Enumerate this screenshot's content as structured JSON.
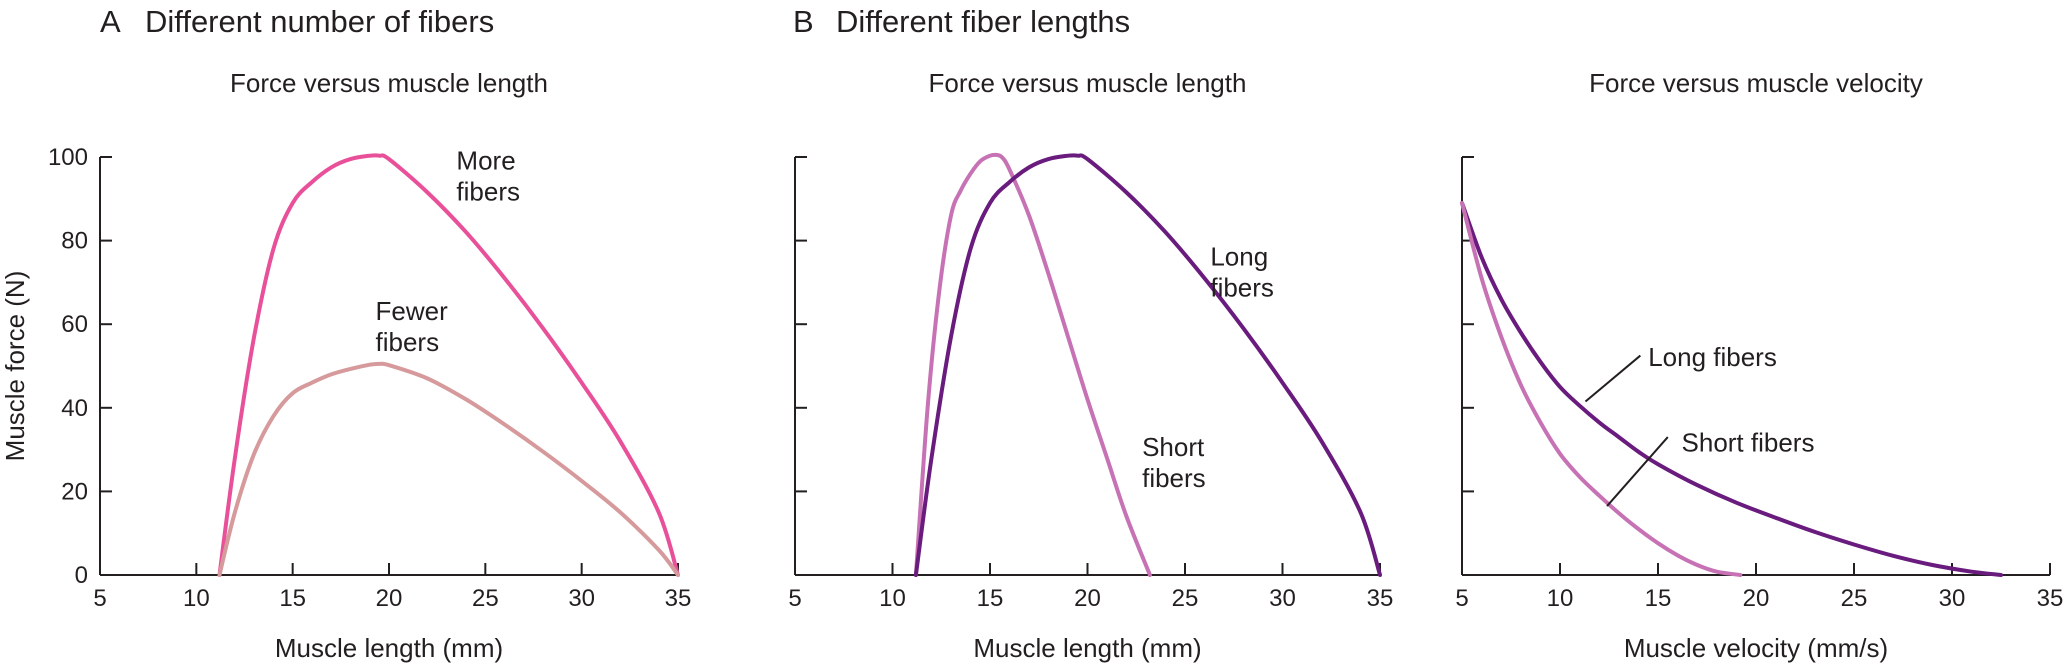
{
  "panels": [
    {
      "letter": "A",
      "heading": "Different number of fibers"
    },
    {
      "letter": "B",
      "heading": "Different fiber lengths"
    }
  ],
  "chart_data": [
    {
      "type": "line",
      "title": "Force versus muscle length",
      "xlabel": "Muscle length (mm)",
      "ylabel": "Muscle force (N)",
      "xlim": [
        5,
        35
      ],
      "ylim": [
        0,
        100
      ],
      "xticks": [
        5,
        10,
        15,
        20,
        25,
        30,
        35
      ],
      "yticks": [
        0,
        20,
        40,
        60,
        80,
        100
      ],
      "show_xtick_labels": true,
      "show_ytick_labels": true,
      "grid": false,
      "legend": "none",
      "series": [
        {
          "name": "More fibers",
          "color": "#e8519a",
          "label_lines": [
            "More",
            "fibers"
          ],
          "x": [
            11.2,
            12,
            13,
            14,
            15,
            16,
            17,
            18,
            19,
            19.5,
            20,
            22,
            24,
            26,
            28,
            30,
            32,
            34,
            35
          ],
          "y": [
            0,
            28,
            57,
            78,
            89,
            94,
            97.5,
            99.5,
            100.3,
            100.3,
            99.5,
            91.5,
            82,
            71,
            59,
            46,
            32,
            15,
            0
          ]
        },
        {
          "name": "Fewer fibers",
          "color": "#d69a9c",
          "label_lines": [
            "Fewer",
            "fibers"
          ],
          "x": [
            11.2,
            12,
            13,
            14,
            15,
            16,
            17,
            18,
            19,
            19.5,
            20,
            22,
            24,
            26,
            28,
            30,
            32,
            34,
            35
          ],
          "y": [
            0,
            15,
            29,
            38,
            43.5,
            46,
            48,
            49.3,
            50.3,
            50.5,
            50.2,
            47,
            42,
            36,
            29.5,
            22.5,
            15,
            6,
            0
          ]
        }
      ],
      "annotations": [
        {
          "series": 0,
          "lines": [
            "More",
            "fibers"
          ],
          "x": 23.5,
          "y": 97
        },
        {
          "series": 1,
          "lines": [
            "Fewer",
            "fibers"
          ],
          "x": 19.3,
          "y": 61
        }
      ]
    },
    {
      "type": "line",
      "title": "Force versus muscle length",
      "xlabel": "Muscle length (mm)",
      "ylabel": "",
      "xlim": [
        5,
        35
      ],
      "ylim": [
        0,
        100
      ],
      "xticks": [
        5,
        10,
        15,
        20,
        25,
        30,
        35
      ],
      "yticks": [
        0,
        20,
        40,
        60,
        80,
        100
      ],
      "show_xtick_labels": true,
      "show_ytick_labels": false,
      "grid": false,
      "legend": "none",
      "series": [
        {
          "name": "Short fibers",
          "color": "#c772b4",
          "x": [
            11.2,
            11.8,
            12.4,
            13,
            13.5,
            14,
            14.5,
            15,
            15.3,
            15.6,
            16,
            17,
            18,
            19,
            20,
            21,
            22,
            23.2
          ],
          "y": [
            0,
            40,
            68,
            86,
            92,
            96,
            99,
            100.3,
            100.5,
            100,
            97,
            86,
            72,
            57,
            42,
            28,
            14,
            0
          ]
        },
        {
          "name": "Long fibers",
          "color": "#6a1b7e",
          "x": [
            11.2,
            12,
            13,
            14,
            15,
            16,
            17,
            18,
            19,
            19.5,
            20,
            22,
            24,
            26,
            28,
            30,
            32,
            34,
            35
          ],
          "y": [
            0,
            28,
            57,
            78,
            89,
            94,
            97.5,
            99.5,
            100.3,
            100.3,
            99.5,
            91.5,
            82,
            71,
            59,
            46,
            32,
            15,
            0
          ]
        }
      ],
      "annotations": [
        {
          "series": 1,
          "lines": [
            "Long",
            "fibers"
          ],
          "x": 26.3,
          "y": 74
        },
        {
          "series": 0,
          "lines": [
            "Short",
            "fibers"
          ],
          "x": 22.8,
          "y": 28.5
        }
      ]
    },
    {
      "type": "line",
      "title": "Force versus muscle velocity",
      "xlabel": "Muscle velocity (mm/s)",
      "ylabel": "",
      "xlim": [
        5,
        35
      ],
      "ylim": [
        0,
        100
      ],
      "xticks": [
        5,
        10,
        15,
        20,
        25,
        30,
        35
      ],
      "yticks": [
        0,
        20,
        40,
        60,
        80,
        100
      ],
      "show_xtick_labels": true,
      "show_ytick_labels": false,
      "grid": false,
      "legend": "none",
      "series": [
        {
          "name": "Long fibers",
          "color": "#6a1b7e",
          "x": [
            5,
            6,
            7,
            8,
            9,
            10,
            11,
            12,
            13,
            14,
            15,
            17,
            19,
            21,
            23,
            25,
            27,
            29,
            31,
            32.5
          ],
          "y": [
            89,
            76,
            66,
            58,
            51,
            45,
            40.5,
            36.5,
            33,
            29.5,
            26.5,
            21.5,
            17.3,
            13.7,
            10.3,
            7.3,
            4.6,
            2.4,
            0.8,
            0
          ]
        },
        {
          "name": "Short fibers",
          "color": "#c772b4",
          "x": [
            5,
            6,
            7,
            8,
            9,
            10,
            11,
            12,
            13,
            14,
            15,
            16,
            17,
            18,
            19.2
          ],
          "y": [
            89,
            71,
            57,
            45.5,
            36.5,
            29,
            23.5,
            19,
            14.8,
            11,
            7.6,
            4.7,
            2.4,
            0.8,
            0
          ]
        }
      ],
      "annotations": [
        {
          "series": 0,
          "lines": [
            "Long fibers"
          ],
          "x": 14.5,
          "y": 50,
          "leader": [
            [
              11.3,
              41.5
            ],
            [
              14.1,
              52.5
            ]
          ]
        },
        {
          "series": 1,
          "lines": [
            "Short fibers"
          ],
          "x": 16.2,
          "y": 29.5,
          "leader": [
            [
              12.4,
              16.5
            ],
            [
              15.5,
              33
            ]
          ]
        }
      ]
    }
  ]
}
